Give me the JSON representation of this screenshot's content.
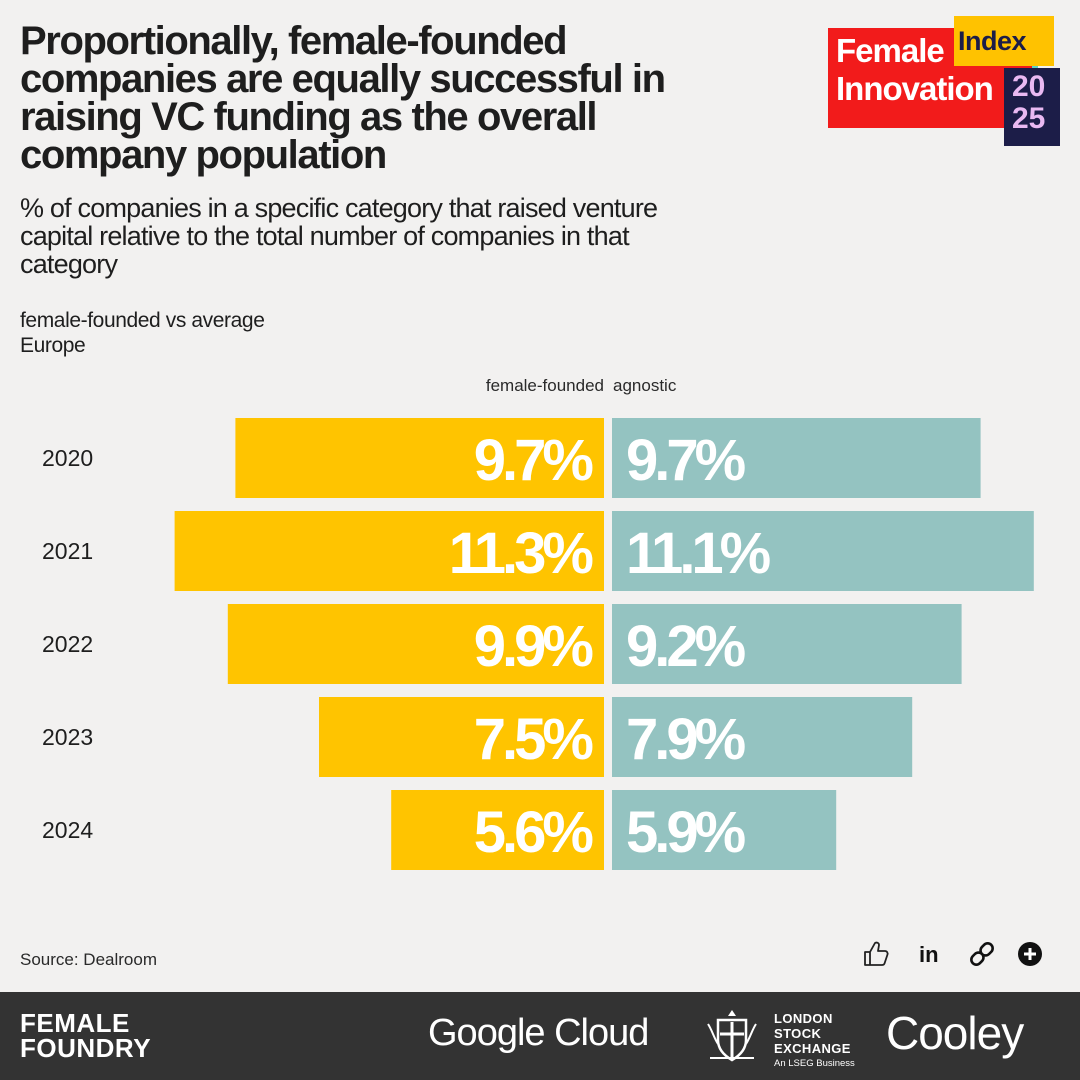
{
  "header": {
    "title": "Proportionally, female-founded companies are equally successful in raising VC funding as the overall company population",
    "subtitle": "% of companies in a specific category that raised venture capital relative to the total number of companies in that category",
    "note_line1": "female-founded vs average",
    "note_line2": "Europe"
  },
  "logo": {
    "word1": "Female",
    "word2": "Innovation",
    "word3": "Index",
    "year_top": "20",
    "year_bottom": "25"
  },
  "chart_data": {
    "type": "bar",
    "orientation": "horizontal-diverging",
    "categories": [
      "2020",
      "2021",
      "2022",
      "2023",
      "2024"
    ],
    "series": [
      {
        "name": "female-founded",
        "values": [
          9.7,
          11.3,
          9.9,
          7.5,
          5.6
        ],
        "labels": [
          "9.7%",
          "11.3%",
          "9.9%",
          "7.5%",
          "5.6%"
        ],
        "color": "#ffc400"
      },
      {
        "name": "agnostic",
        "values": [
          9.7,
          11.1,
          9.2,
          7.9,
          5.9
        ],
        "labels": [
          "9.7%",
          "11.1%",
          "9.2%",
          "7.9%",
          "5.9%"
        ],
        "color": "#94c3c1"
      }
    ],
    "xlim": [
      0,
      12
    ],
    "grid": false
  },
  "source": "Source: Dealroom",
  "actions": {
    "like": "thumbs-up-icon",
    "linkedin": "in",
    "link": "link-icon",
    "add": "plus-circle-icon"
  },
  "footer": {
    "female_foundry_line1": "FEMALE",
    "female_foundry_line2": "FOUNDRY",
    "google_cloud": "Google Cloud",
    "lse_line1": "LONDON",
    "lse_line2": "STOCK",
    "lse_line3": "EXCHANGE",
    "lse_sub": "An LSEG Business",
    "cooley": "Cooley"
  },
  "colors": {
    "background": "#f2f1f0",
    "female": "#ffc400",
    "agnostic": "#94c3c1",
    "footer": "#333333"
  }
}
